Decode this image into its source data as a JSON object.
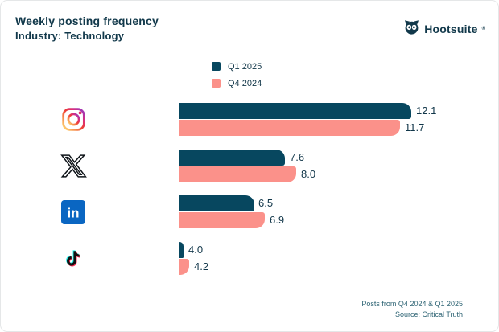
{
  "header": {
    "title": "Weekly posting frequency",
    "subtitle": "Industry: Technology",
    "brand": "Hootsuite",
    "brand_reg": "®"
  },
  "legend": [
    {
      "label": "Q1 2025",
      "color": "#07475f"
    },
    {
      "label": "Q4 2024",
      "color": "#fb918a"
    }
  ],
  "colors": {
    "q1_bar": "#07475f",
    "q4_bar": "#fb918a",
    "text_dark": "#11384a",
    "footer_text": "#2e6474",
    "card_border": "#e5e7e8"
  },
  "icons": [
    "instagram-icon",
    "x-icon",
    "linkedin-icon",
    "tiktok-icon"
  ],
  "chart_data": {
    "type": "bar",
    "orientation": "horizontal",
    "title": "Weekly posting frequency",
    "subtitle": "Industry: Technology",
    "categories": [
      "Instagram",
      "X",
      "LinkedIn",
      "TikTok"
    ],
    "series": [
      {
        "name": "Q1 2025",
        "color": "#07475f",
        "values": [
          12.1,
          7.6,
          6.5,
          4.0
        ]
      },
      {
        "name": "Q4 2024",
        "color": "#fb918a",
        "values": [
          11.7,
          8.0,
          6.9,
          4.2
        ]
      }
    ],
    "value_labels": true,
    "xlim": [
      3.85,
      12.6
    ],
    "grid": false,
    "legend_position": "top-center"
  },
  "footer": {
    "line1": "Posts from Q4 2024 & Q1 2025",
    "line2": "Source: Critical Truth"
  }
}
